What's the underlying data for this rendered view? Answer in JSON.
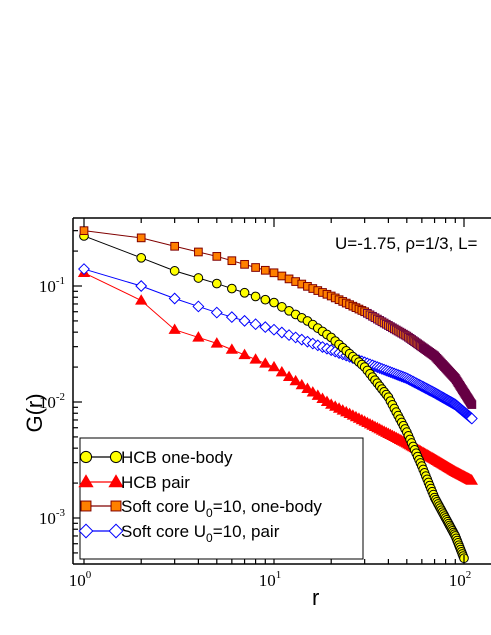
{
  "chart_data": {
    "type": "line",
    "xscale": "log",
    "yscale": "log",
    "xlim": [
      0.9,
      110
    ],
    "ylim": [
      0.0004,
      0.32
    ],
    "xlabel": "r",
    "ylabel": "G(r)",
    "annotation": "U=-1.75, ρ=1/3, L=",
    "x_ticks": [
      {
        "value": 1,
        "base": "10",
        "exp": "0"
      },
      {
        "value": 10,
        "base": "10",
        "exp": "1"
      },
      {
        "value": 100,
        "base": "10",
        "exp": "2"
      }
    ],
    "y_ticks": [
      {
        "value": 0.001,
        "base": "10",
        "exp": "-3"
      },
      {
        "value": 0.01,
        "base": "10",
        "exp": "-2"
      },
      {
        "value": 0.1,
        "base": "10",
        "exp": "-1"
      }
    ],
    "grid": false,
    "legend_position": "bottom-left",
    "series": [
      {
        "name": "HCB one-body",
        "legend_sub": "",
        "legend_tail": "",
        "color": "#000000",
        "marker": "circle",
        "marker_fill": "#ffff00",
        "marker_stroke": "#000000",
        "x_range": [
          1,
          100
        ],
        "points": [
          [
            1,
            0.27
          ],
          [
            2,
            0.175
          ],
          [
            3,
            0.135
          ],
          [
            5,
            0.105
          ],
          [
            10,
            0.072
          ],
          [
            15,
            0.05
          ],
          [
            20,
            0.036
          ],
          [
            30,
            0.02
          ],
          [
            40,
            0.011
          ],
          [
            50,
            0.0055
          ],
          [
            60,
            0.0028
          ],
          [
            70,
            0.0015
          ],
          [
            80,
            0.001
          ],
          [
            90,
            0.0007
          ],
          [
            100,
            0.00045
          ]
        ]
      },
      {
        "name": "HCB pair",
        "legend_sub": "",
        "legend_tail": "",
        "color": "#ff0000",
        "marker": "triangle",
        "marker_fill": "#ff0000",
        "marker_stroke": "#ff0000",
        "x_range": [
          1,
          110
        ],
        "points": [
          [
            1,
            0.13
          ],
          [
            2,
            0.075
          ],
          [
            3,
            0.042
          ],
          [
            5,
            0.032
          ],
          [
            10,
            0.02
          ],
          [
            15,
            0.013
          ],
          [
            20,
            0.0095
          ],
          [
            30,
            0.0068
          ],
          [
            50,
            0.0044
          ],
          [
            70,
            0.0032
          ],
          [
            90,
            0.0025
          ],
          [
            110,
            0.0021
          ]
        ]
      },
      {
        "name": "Soft core U",
        "legend_sub": "0",
        "legend_tail": "=10, one-body",
        "color": "#800000",
        "marker": "square",
        "marker_fill": "#ff8000",
        "marker_stroke": "#800000",
        "dense_color": "#660044",
        "x_range": [
          1,
          110
        ],
        "points": [
          [
            1,
            0.3
          ],
          [
            2,
            0.26
          ],
          [
            3,
            0.22
          ],
          [
            5,
            0.18
          ],
          [
            10,
            0.13
          ],
          [
            20,
            0.082
          ],
          [
            30,
            0.06
          ],
          [
            50,
            0.037
          ],
          [
            70,
            0.025
          ],
          [
            90,
            0.016
          ],
          [
            110,
            0.0095
          ]
        ]
      },
      {
        "name": "Soft core U",
        "legend_sub": "0",
        "legend_tail": "=10, pair",
        "color": "#0000ff",
        "marker": "diamond",
        "marker_fill": "#ffffff",
        "marker_stroke": "#0000ff",
        "x_range": [
          1,
          110
        ],
        "points": [
          [
            1,
            0.14
          ],
          [
            2,
            0.1
          ],
          [
            3,
            0.078
          ],
          [
            5,
            0.059
          ],
          [
            10,
            0.042
          ],
          [
            20,
            0.028
          ],
          [
            30,
            0.022
          ],
          [
            50,
            0.016
          ],
          [
            70,
            0.012
          ],
          [
            90,
            0.0095
          ],
          [
            110,
            0.0072
          ]
        ]
      }
    ]
  }
}
